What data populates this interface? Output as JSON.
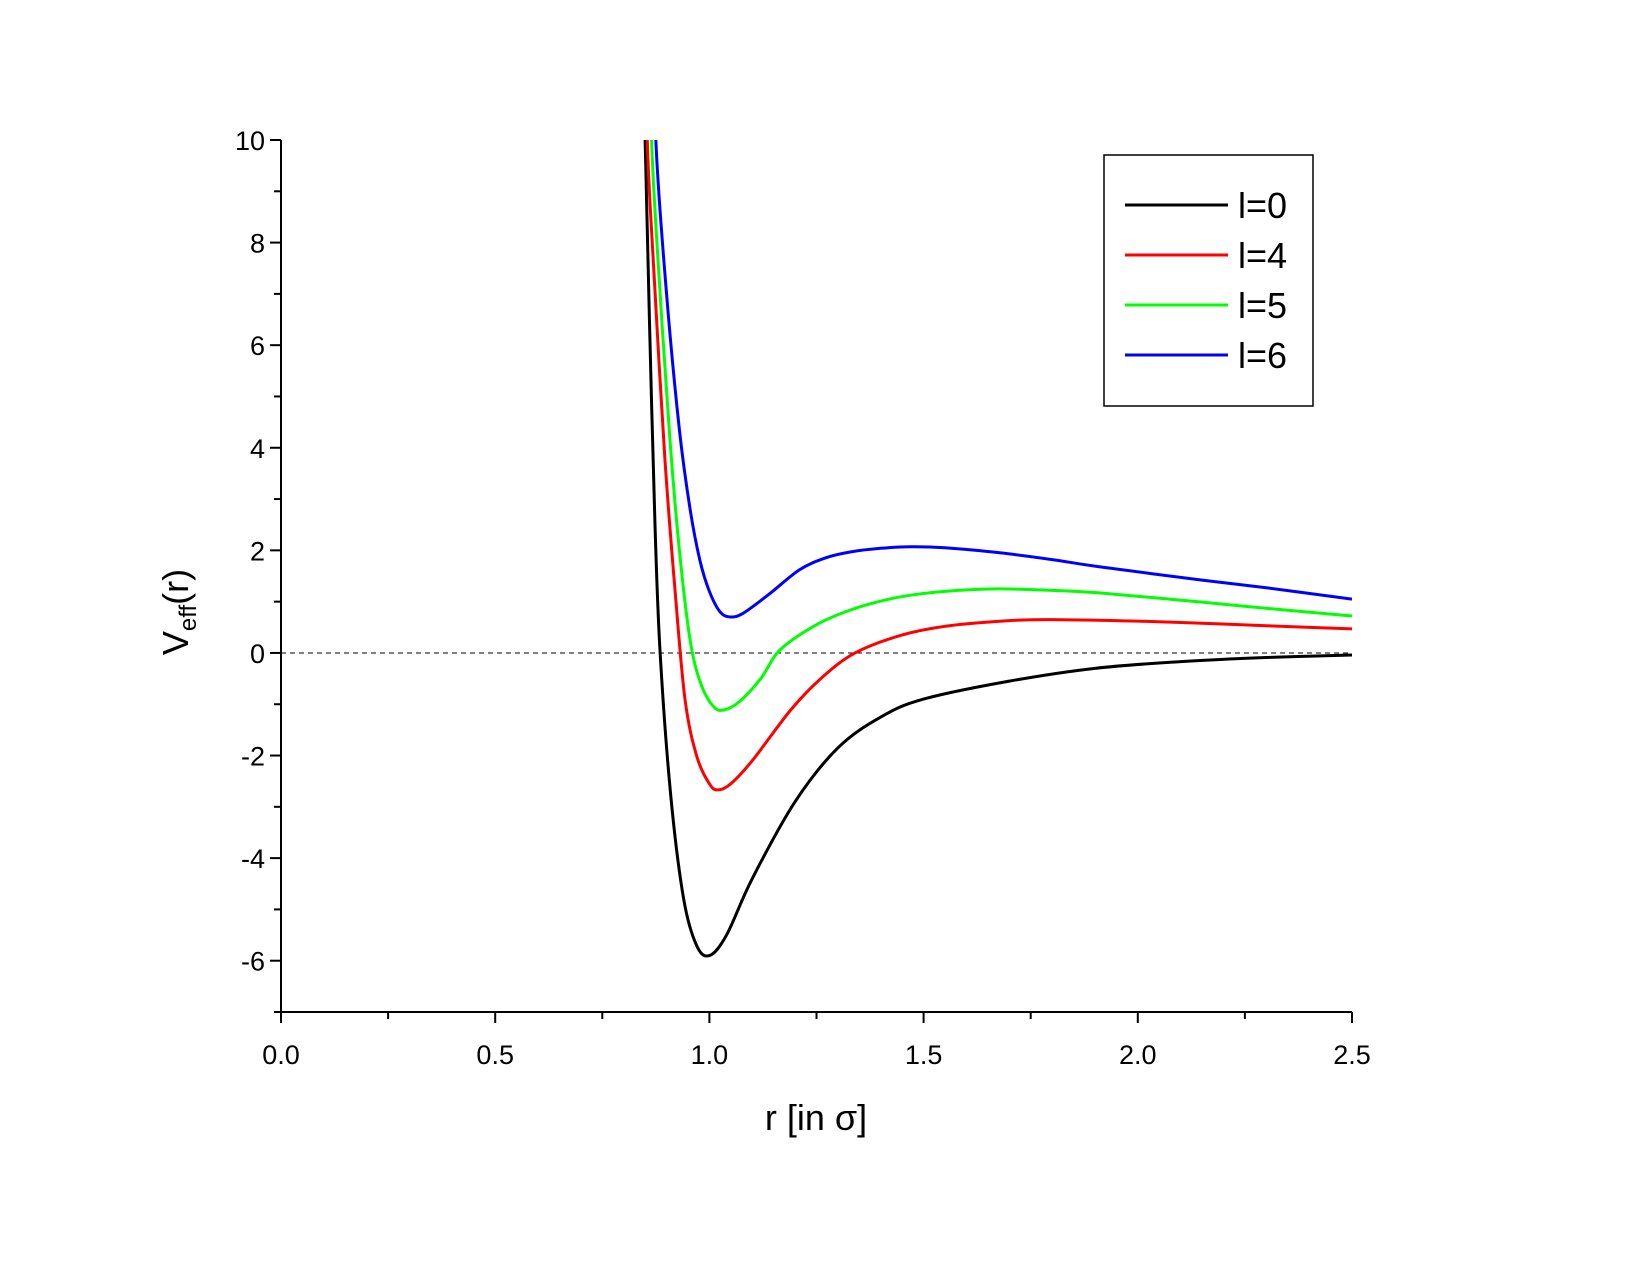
{
  "chart_data": {
    "type": "line",
    "title": "",
    "xlabel": "r [in σ]",
    "ylabel_main": "V",
    "ylabel_sub": "eff",
    "ylabel_tail": "(r)",
    "xlim": [
      0,
      2.5
    ],
    "ylim": [
      -7,
      10
    ],
    "xticks": [
      "0.0",
      "0.5",
      "1.0",
      "1.5",
      "2.0",
      "2.5"
    ],
    "xtick_values": [
      0,
      0.5,
      1.0,
      1.5,
      2.0,
      2.5
    ],
    "yticks": [
      "10",
      "8",
      "6",
      "4",
      "2",
      "0",
      "-2",
      "-4",
      "-6"
    ],
    "ytick_values": [
      10,
      8,
      6,
      4,
      2,
      0,
      -2,
      -4,
      -6
    ],
    "grid": false,
    "reference_line": {
      "y": 0,
      "style": "dashed",
      "color": "#000000"
    },
    "legend_position": "top-right",
    "series": [
      {
        "name": "l=0",
        "color": "#000000",
        "x": [
          0.85,
          0.86,
          0.873,
          0.885,
          0.91,
          0.94,
          0.97,
          1.0,
          1.04,
          1.1,
          1.2,
          1.3,
          1.4,
          1.5,
          1.7,
          1.9,
          2.1,
          2.3,
          2.5
        ],
        "y": [
          10,
          6.5,
          2.5,
          0,
          -2.8,
          -4.8,
          -5.7,
          -5.9,
          -5.5,
          -4.4,
          -2.9,
          -1.85,
          -1.25,
          -0.9,
          -0.55,
          -0.3,
          -0.17,
          -0.09,
          -0.04
        ]
      },
      {
        "name": "l=4",
        "color": "#ff0000",
        "x": [
          0.855,
          0.87,
          0.896,
          0.92,
          0.943,
          0.97,
          1.0,
          1.02,
          1.05,
          1.1,
          1.19,
          1.26,
          1.34,
          1.45,
          1.56,
          1.7,
          1.8,
          2.0,
          2.15,
          2.3,
          2.5
        ],
        "y": [
          10,
          7.5,
          3.8,
          1.2,
          -0.9,
          -2.0,
          -2.55,
          -2.67,
          -2.55,
          -2.1,
          -1.11,
          -0.5,
          0,
          0.35,
          0.53,
          0.63,
          0.65,
          0.62,
          0.58,
          0.53,
          0.47
        ]
      },
      {
        "name": "l=5",
        "color": "#00ff00",
        "x": [
          0.865,
          0.885,
          0.908,
          0.93,
          0.955,
          0.98,
          1.01,
          1.035,
          1.07,
          1.12,
          1.165,
          1.25,
          1.33,
          1.42,
          1.5,
          1.6,
          1.68,
          1.8,
          1.91,
          2.15,
          2.3,
          2.5
        ],
        "y": [
          10,
          7,
          4.15,
          2.0,
          0.25,
          -0.6,
          -1.05,
          -1.11,
          -0.95,
          -0.5,
          0.06,
          0.55,
          0.84,
          1.05,
          1.16,
          1.23,
          1.25,
          1.22,
          1.17,
          0.99,
          0.87,
          0.72
        ]
      },
      {
        "name": "l=6",
        "color": "#0000ff",
        "x": [
          0.875,
          0.9,
          0.93,
          0.955,
          0.978,
          1.0,
          1.025,
          1.05,
          1.08,
          1.14,
          1.21,
          1.27,
          1.33,
          1.4,
          1.47,
          1.55,
          1.68,
          1.8,
          1.91,
          2.15,
          2.3,
          2.5
        ],
        "y": [
          10,
          7,
          4.35,
          2.8,
          1.8,
          1.2,
          0.8,
          0.7,
          0.78,
          1.15,
          1.62,
          1.85,
          1.97,
          2.04,
          2.07,
          2.05,
          1.95,
          1.82,
          1.68,
          1.42,
          1.27,
          1.05
        ]
      }
    ]
  }
}
